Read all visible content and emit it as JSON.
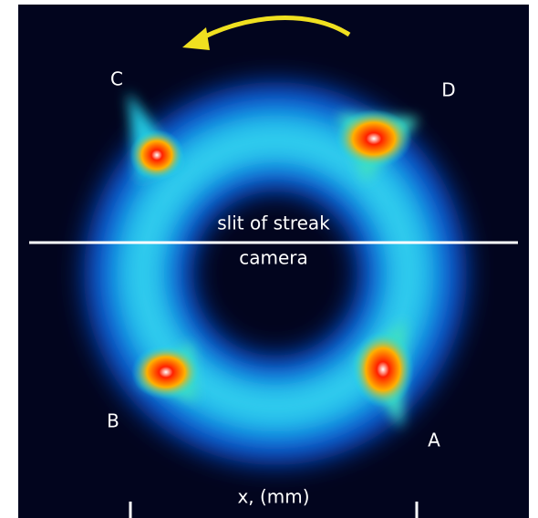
{
  "points": [
    {
      "label": "C"
    },
    {
      "label": "D"
    },
    {
      "label": "B"
    },
    {
      "label": "A"
    }
  ],
  "slit_label": {
    "line1": "slit of streak",
    "line2": "camera"
  },
  "axis_label": "x, (mm)"
}
